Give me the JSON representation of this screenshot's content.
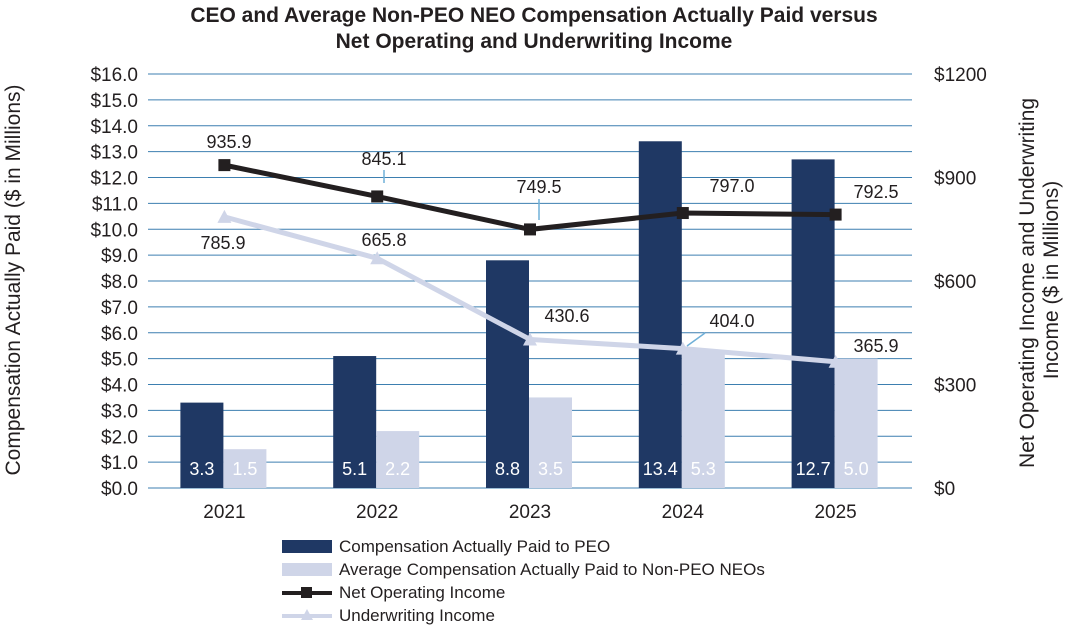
{
  "chart_data": {
    "type": "bar",
    "title": [
      "CEO and Average Non-PEO NEO Compensation Actually Paid versus",
      "Net Operating and Underwriting Income"
    ],
    "categories": [
      "2021",
      "2022",
      "2023",
      "2024",
      "2025"
    ],
    "ylabel_left": "Compensation Actually Paid ($ in Millions)",
    "ylabel_right": "Net Operating Income and Underwriting Income ($ in Millions)",
    "ylim_left": [
      0,
      16
    ],
    "ylim_right": [
      0,
      1200
    ],
    "yticks_left": [
      "$0.0",
      "$1.0",
      "$2.0",
      "$3.0",
      "$4.0",
      "$5.0",
      "$6.0",
      "$7.0",
      "$8.0",
      "$9.0",
      "$10.0",
      "$11.0",
      "$12.0",
      "$13.0",
      "$14.0",
      "$15.0",
      "$16.0"
    ],
    "yticks_right": [
      "$0",
      "$300",
      "$600",
      "$900",
      "$1200"
    ],
    "grid": true,
    "bar_series": [
      {
        "name": "Compensation Actually Paid to PEO",
        "axis": "left",
        "color": "#1f3864",
        "values": [
          3.3,
          5.1,
          8.8,
          13.4,
          12.7
        ],
        "labels": [
          "3.3",
          "5.1",
          "8.8",
          "13.4",
          "12.7"
        ]
      },
      {
        "name": "Average Compensation Actually Paid to Non-PEO NEOs",
        "axis": "left",
        "color": "#cfd5e8",
        "values": [
          1.5,
          2.2,
          3.5,
          5.3,
          5.0
        ],
        "labels": [
          "1.5",
          "2.2",
          "3.5",
          "5.3",
          "5.0"
        ]
      }
    ],
    "line_series": [
      {
        "name": "Net Operating Income",
        "axis": "right",
        "color": "#231f20",
        "marker": "square",
        "values": [
          935.9,
          845.1,
          749.5,
          797.0,
          792.5
        ],
        "labels": [
          "935.9",
          "845.1",
          "749.5",
          "797.0",
          "792.5"
        ]
      },
      {
        "name": "Underwriting Income",
        "axis": "right",
        "color": "#cfd5e8",
        "marker": "triangle",
        "values": [
          785.9,
          665.8,
          430.6,
          404.0,
          365.9
        ],
        "labels": [
          "785.9",
          "665.8",
          "430.6",
          "404.0",
          "365.9"
        ]
      }
    ],
    "legend": [
      {
        "label": "Compensation Actually Paid to PEO",
        "kind": "bar",
        "color": "#1f3864"
      },
      {
        "label": "Average Compensation Actually Paid to Non-PEO NEOs",
        "kind": "bar",
        "color": "#cfd5e8"
      },
      {
        "label": "Net Operating Income",
        "kind": "line-square",
        "color": "#231f20"
      },
      {
        "label": "Underwriting Income",
        "kind": "line-triangle",
        "color": "#cfd5e8"
      }
    ],
    "legend_position": "bottom"
  }
}
